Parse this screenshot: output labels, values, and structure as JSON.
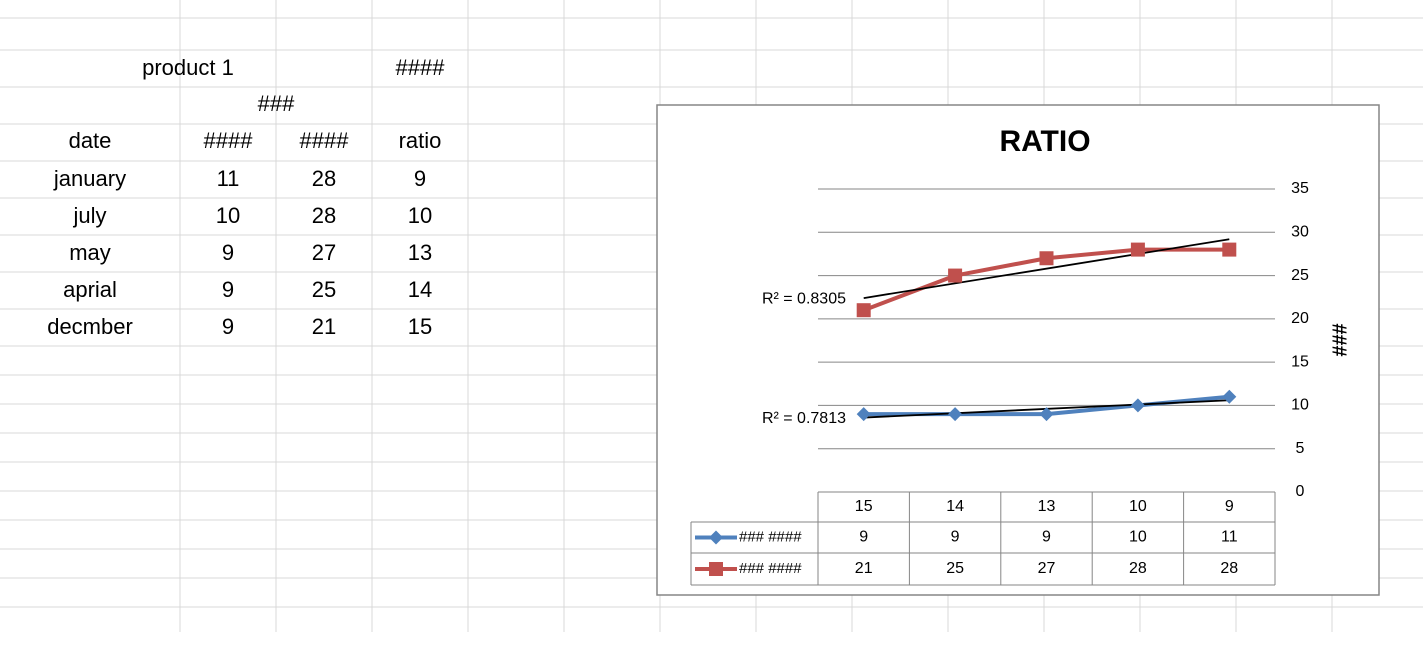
{
  "sheet": {
    "title": "product 1",
    "title_value": "####",
    "subheader": "###",
    "headers": [
      "date",
      "####",
      "####",
      "ratio"
    ],
    "rows": [
      [
        "january",
        11,
        28,
        9
      ],
      [
        "july",
        10,
        28,
        10
      ],
      [
        "may",
        9,
        27,
        13
      ],
      [
        "aprial",
        9,
        25,
        14
      ],
      [
        "decmber",
        9,
        21,
        15
      ]
    ]
  },
  "chart_data": {
    "type": "line",
    "title": "RATIO",
    "y_label": "###",
    "categories": [
      "15",
      "14",
      "13",
      "10",
      "9"
    ],
    "series": [
      {
        "name": "### ####",
        "color": "#4f81bd",
        "marker": "diamond",
        "values": [
          9,
          9,
          9,
          10,
          11
        ],
        "trendline_label": "R² = 0.7813"
      },
      {
        "name": "### ####",
        "color": "#c0504d",
        "marker": "square",
        "values": [
          21,
          25,
          27,
          28,
          28
        ],
        "trendline_label": "R² = 0.8305"
      }
    ],
    "ylim": [
      0,
      35
    ],
    "yticks": [
      0,
      5,
      10,
      15,
      20,
      25,
      30,
      35
    ],
    "grid": true,
    "y_axis_side": "right",
    "trendline_color": "#000000"
  }
}
